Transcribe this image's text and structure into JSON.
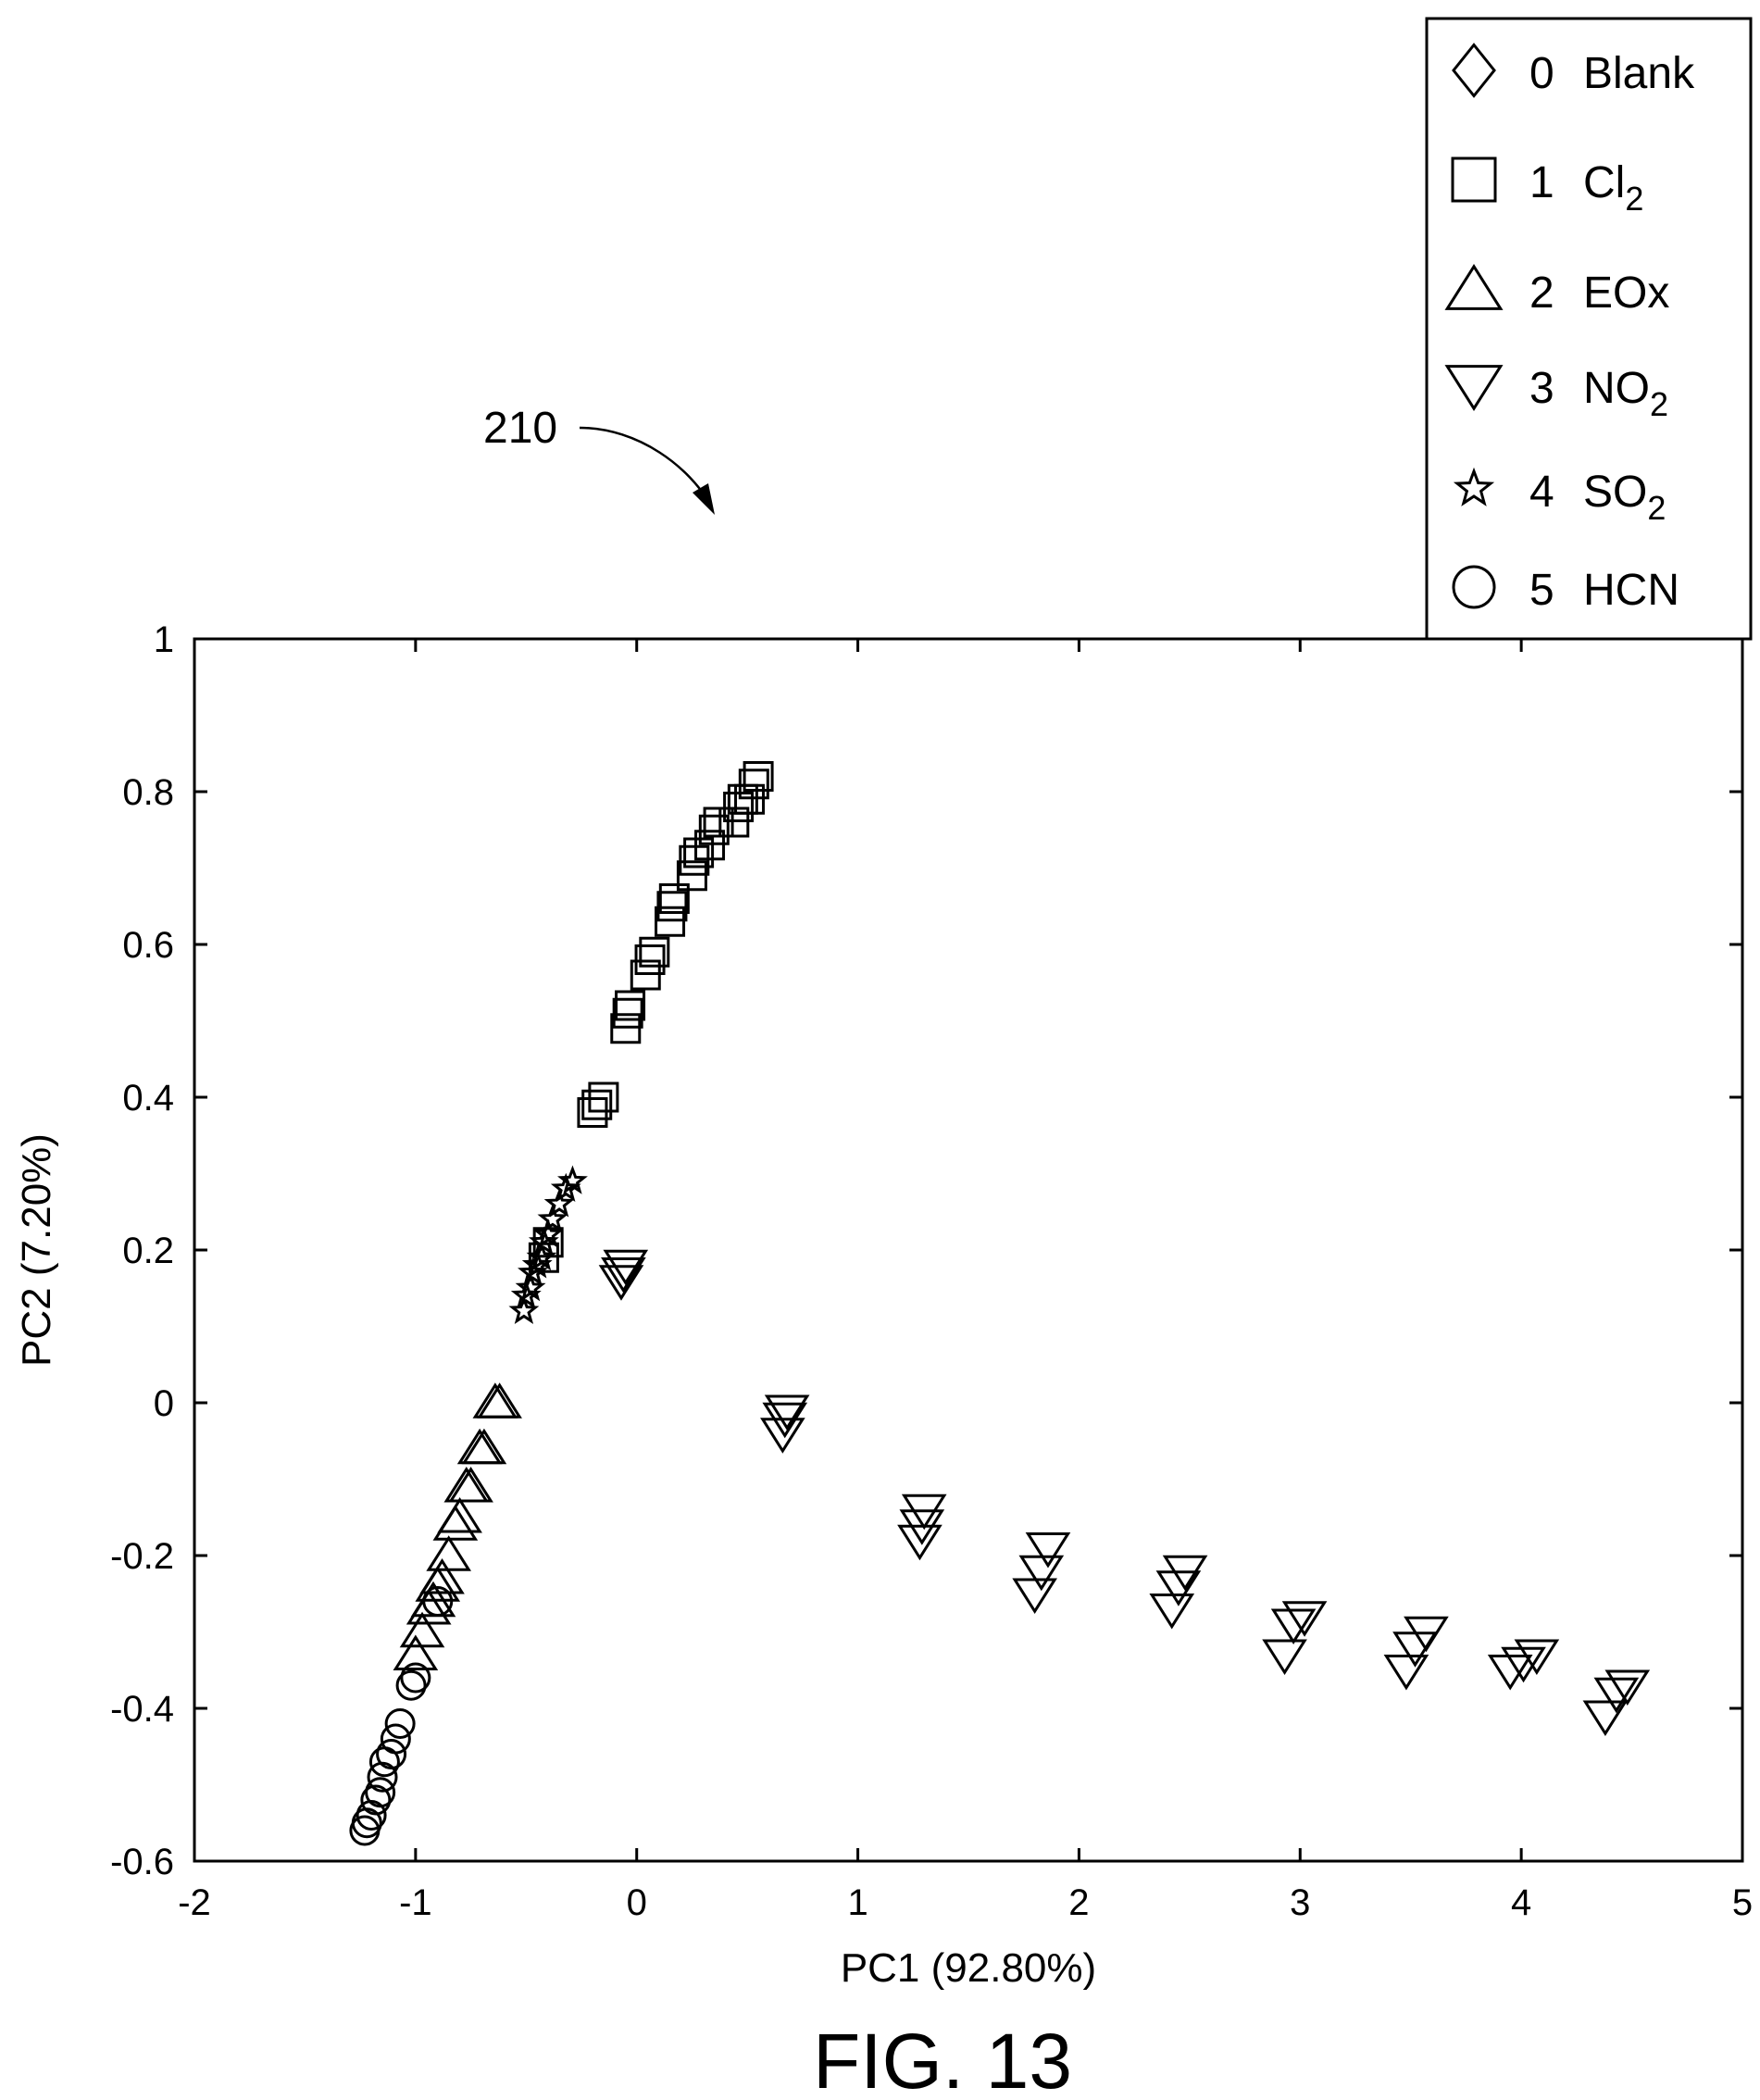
{
  "figure": {
    "caption": "FIG. 13",
    "reference_numeral": "210"
  },
  "chart_data": {
    "type": "scatter",
    "xlabel": "PC1 (92.80%)",
    "ylabel": "PC2 (7.20%)",
    "xlim": [
      -2,
      5
    ],
    "ylim": [
      -0.6,
      1
    ],
    "xticks": [
      -2,
      -1,
      0,
      1,
      2,
      3,
      4,
      5
    ],
    "yticks": [
      -0.6,
      -0.4,
      -0.2,
      0,
      0.2,
      0.4,
      0.6,
      0.8,
      1
    ],
    "xtick_labels": [
      "-2",
      "-1",
      "0",
      "1",
      "2",
      "3",
      "4",
      "5"
    ],
    "ytick_labels": [
      "-0.6",
      "-0.4",
      "-0.2",
      "0",
      "0.2",
      "0.4",
      "0.6",
      "0.8",
      "1"
    ],
    "grid": false,
    "legend_position": "top-right",
    "legend": [
      {
        "number": "0",
        "name": "Blank",
        "marker": "diamond"
      },
      {
        "number": "1",
        "name": "Cl",
        "sub": "2",
        "marker": "square"
      },
      {
        "number": "2",
        "name": "EOx",
        "marker": "triangle-up"
      },
      {
        "number": "3",
        "name": "NO",
        "sub": "2",
        "marker": "triangle-down"
      },
      {
        "number": "4",
        "name": "SO",
        "sub": "2",
        "marker": "star"
      },
      {
        "number": "5",
        "name": "HCN",
        "marker": "circle"
      }
    ],
    "series": [
      {
        "name": "Blank",
        "marker": "diamond",
        "points": []
      },
      {
        "name": "Cl2",
        "marker": "square",
        "points": [
          [
            -0.42,
            0.19
          ],
          [
            -0.4,
            0.21
          ],
          [
            -0.2,
            0.38
          ],
          [
            -0.18,
            0.39
          ],
          [
            -0.15,
            0.4
          ],
          [
            -0.05,
            0.49
          ],
          [
            -0.04,
            0.51
          ],
          [
            -0.03,
            0.52
          ],
          [
            0.04,
            0.56
          ],
          [
            0.06,
            0.58
          ],
          [
            0.08,
            0.59
          ],
          [
            0.15,
            0.63
          ],
          [
            0.16,
            0.65
          ],
          [
            0.17,
            0.66
          ],
          [
            0.25,
            0.69
          ],
          [
            0.26,
            0.71
          ],
          [
            0.28,
            0.72
          ],
          [
            0.33,
            0.73
          ],
          [
            0.35,
            0.75
          ],
          [
            0.37,
            0.76
          ],
          [
            0.44,
            0.76
          ],
          [
            0.46,
            0.78
          ],
          [
            0.48,
            0.79
          ],
          [
            0.51,
            0.79
          ],
          [
            0.53,
            0.81
          ],
          [
            0.55,
            0.82
          ]
        ]
      },
      {
        "name": "EOx",
        "marker": "triangle-up",
        "points": [
          [
            -0.62,
            0.0
          ],
          [
            -0.64,
            0.0
          ],
          [
            -0.69,
            -0.06
          ],
          [
            -0.71,
            -0.06
          ],
          [
            -0.75,
            -0.11
          ],
          [
            -0.77,
            -0.11
          ],
          [
            -0.8,
            -0.15
          ],
          [
            -0.82,
            -0.16
          ],
          [
            -0.85,
            -0.2
          ],
          [
            -0.88,
            -0.23
          ],
          [
            -0.9,
            -0.24
          ],
          [
            -0.92,
            -0.26
          ],
          [
            -0.94,
            -0.27
          ],
          [
            -0.97,
            -0.3
          ],
          [
            -1.0,
            -0.33
          ]
        ]
      },
      {
        "name": "NO2",
        "marker": "triangle-down",
        "points": [
          [
            -0.05,
            0.18
          ],
          [
            -0.06,
            0.17
          ],
          [
            -0.07,
            0.16
          ],
          [
            0.68,
            -0.01
          ],
          [
            0.67,
            -0.02
          ],
          [
            0.66,
            -0.04
          ],
          [
            1.3,
            -0.14
          ],
          [
            1.29,
            -0.16
          ],
          [
            1.28,
            -0.18
          ],
          [
            1.86,
            -0.19
          ],
          [
            1.83,
            -0.22
          ],
          [
            1.8,
            -0.25
          ],
          [
            2.48,
            -0.22
          ],
          [
            2.45,
            -0.24
          ],
          [
            2.42,
            -0.27
          ],
          [
            3.02,
            -0.28
          ],
          [
            2.97,
            -0.29
          ],
          [
            2.93,
            -0.33
          ],
          [
            3.57,
            -0.3
          ],
          [
            3.52,
            -0.32
          ],
          [
            3.48,
            -0.35
          ],
          [
            4.07,
            -0.33
          ],
          [
            4.01,
            -0.34
          ],
          [
            3.95,
            -0.35
          ],
          [
            4.48,
            -0.37
          ],
          [
            4.43,
            -0.38
          ],
          [
            4.38,
            -0.41
          ]
        ]
      },
      {
        "name": "SO2",
        "marker": "star",
        "points": [
          [
            -0.29,
            0.29
          ],
          [
            -0.32,
            0.28
          ],
          [
            -0.35,
            0.26
          ],
          [
            -0.38,
            0.24
          ],
          [
            -0.4,
            0.22
          ],
          [
            -0.42,
            0.21
          ],
          [
            -0.43,
            0.19
          ],
          [
            -0.45,
            0.18
          ],
          [
            -0.47,
            0.17
          ],
          [
            -0.48,
            0.15
          ],
          [
            -0.5,
            0.14
          ],
          [
            -0.51,
            0.12
          ]
        ]
      },
      {
        "name": "HCN",
        "marker": "circle",
        "points": [
          [
            -0.9,
            -0.26
          ],
          [
            -1.0,
            -0.36
          ],
          [
            -1.02,
            -0.37
          ],
          [
            -1.07,
            -0.42
          ],
          [
            -1.09,
            -0.44
          ],
          [
            -1.11,
            -0.46
          ],
          [
            -1.14,
            -0.47
          ],
          [
            -1.15,
            -0.49
          ],
          [
            -1.16,
            -0.51
          ],
          [
            -1.18,
            -0.52
          ],
          [
            -1.2,
            -0.54
          ],
          [
            -1.22,
            -0.55
          ],
          [
            -1.23,
            -0.56
          ]
        ]
      }
    ]
  }
}
